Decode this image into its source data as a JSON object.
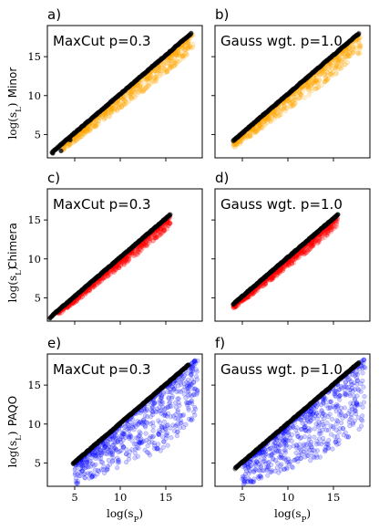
{
  "chart_data": [
    {
      "id": "a",
      "type": "scatter",
      "panel_letter": "a)",
      "title": "MaxCut p=0.3",
      "color": "#FFA500",
      "row_label": "Minor",
      "ylabel": "log(s_L)",
      "xlabel": "",
      "xlim": [
        2,
        19
      ],
      "ylim": [
        2,
        19
      ],
      "xticks": [
        5,
        10,
        15
      ],
      "yticks": [
        5,
        10,
        15
      ],
      "show_xticklabels": false,
      "show_yticklabels": true,
      "black_series": {
        "x_range": [
          2.5,
          17.8
        ],
        "offset": 0.2,
        "outliers": [
          [
            2.6,
            2.6
          ],
          [
            3.5,
            2.9
          ],
          [
            4.5,
            4.3
          ]
        ]
      },
      "color_series": {
        "x_range": [
          3.5,
          18
        ],
        "max_drop": 2.2
      },
      "grid": false
    },
    {
      "id": "b",
      "type": "scatter",
      "panel_letter": "b)",
      "title": "Gauss wgt. p=1.0",
      "color": "#FFA500",
      "row_label": "",
      "ylabel": "",
      "xlabel": "",
      "xlim": [
        2,
        19
      ],
      "ylim": [
        2,
        19
      ],
      "xticks": [
        5,
        10,
        15
      ],
      "yticks": [
        5,
        10,
        15
      ],
      "show_xticklabels": false,
      "show_yticklabels": false,
      "black_series": {
        "x_range": [
          4.0,
          17.8
        ],
        "offset": 0.2,
        "outliers": []
      },
      "color_series": {
        "x_range": [
          4.0,
          18
        ],
        "max_drop": 2.5
      },
      "grid": false
    },
    {
      "id": "c",
      "type": "scatter",
      "panel_letter": "c)",
      "title": "MaxCut p=0.3",
      "color": "#FF0000",
      "row_label": "Chimera",
      "ylabel": "log(s_L)",
      "xlabel": "",
      "xlim": [
        2,
        19
      ],
      "ylim": [
        2,
        19
      ],
      "xticks": [
        5,
        10,
        15
      ],
      "yticks": [
        5,
        10,
        15
      ],
      "show_xticklabels": false,
      "show_yticklabels": true,
      "black_series": {
        "x_range": [
          2.4,
          15.5
        ],
        "offset": 0.2,
        "outliers": [
          [
            2.3,
            2.4
          ]
        ]
      },
      "color_series": {
        "x_range": [
          3.0,
          15.5
        ],
        "max_drop": 1.3
      },
      "grid": false
    },
    {
      "id": "d",
      "type": "scatter",
      "panel_letter": "d)",
      "title": "Gauss wgt. p=1.0",
      "color": "#FF0000",
      "row_label": "",
      "ylabel": "",
      "xlabel": "",
      "xlim": [
        2,
        19
      ],
      "ylim": [
        2,
        19
      ],
      "xticks": [
        5,
        10,
        15
      ],
      "yticks": [
        5,
        10,
        15
      ],
      "show_xticklabels": false,
      "show_yticklabels": false,
      "black_series": {
        "x_range": [
          4.0,
          15.5
        ],
        "offset": 0.2,
        "outliers": []
      },
      "color_series": {
        "x_range": [
          4.0,
          15.5
        ],
        "max_drop": 1.3
      },
      "grid": false
    },
    {
      "id": "e",
      "type": "scatter",
      "panel_letter": "e)",
      "title": "MaxCut p=0.3",
      "color": "#0000FF",
      "row_label": "PAQO",
      "ylabel": "log(s_L)",
      "xlabel": "log(s_P)",
      "xlim": [
        2,
        19
      ],
      "ylim": [
        2,
        19
      ],
      "xticks": [
        5,
        10,
        15
      ],
      "yticks": [
        5,
        10,
        15
      ],
      "show_xticklabels": true,
      "show_yticklabels": true,
      "black_series": {
        "x_range": [
          4.8,
          17.5
        ],
        "offset": 0.1,
        "outliers": []
      },
      "color_series": {
        "x_range": [
          5.0,
          18.5
        ],
        "max_drop": 8.0
      },
      "grid": false
    },
    {
      "id": "f",
      "type": "scatter",
      "panel_letter": "f)",
      "title": "Gauss wgt. p=1.0",
      "color": "#0000FF",
      "row_label": "",
      "ylabel": "",
      "xlabel": "log(s_P)",
      "xlim": [
        2,
        19
      ],
      "ylim": [
        2,
        19
      ],
      "xticks": [
        5,
        10,
        15
      ],
      "yticks": [
        5,
        10,
        15
      ],
      "show_xticklabels": true,
      "show_yticklabels": false,
      "black_series": {
        "x_range": [
          4.2,
          17.8
        ],
        "offset": 0.1,
        "outliers": []
      },
      "color_series": {
        "x_range": [
          5.0,
          18.5
        ],
        "max_drop": 8.5
      },
      "grid": false
    }
  ]
}
